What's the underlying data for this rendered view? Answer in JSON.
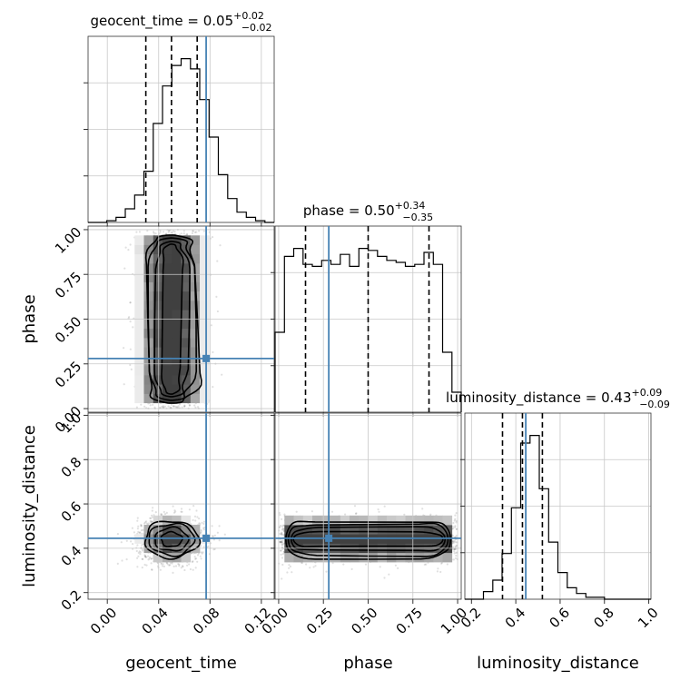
{
  "chart_data": {
    "type": "corner",
    "parameters": [
      "geocent_time",
      "phase",
      "luminosity_distance"
    ],
    "titles": [
      {
        "param": "geocent_time",
        "text": "geocent_time = 0.05",
        "sup": "+0.02",
        "sub": "−0.02"
      },
      {
        "param": "phase",
        "text": "phase = 0.50",
        "sup": "+0.34",
        "sub": "−0.35"
      },
      {
        "param": "luminosity_distance",
        "text": "luminosity_distance = 0.43",
        "sup": "+0.09",
        "sub": "−0.09"
      }
    ],
    "axis_labels": [
      "geocent_time",
      "phase",
      "luminosity_distance"
    ],
    "ranges": {
      "geocent_time": [
        -0.015,
        0.13
      ],
      "phase": [
        -0.02,
        1.02
      ],
      "luminosity_distance": [
        0.17,
        1.01
      ]
    },
    "ticks": {
      "geocent_time": [
        "0.00",
        "0.04",
        "0.08",
        "0.12"
      ],
      "phase": [
        "0.00",
        "0.25",
        "0.50",
        "0.75",
        "1.00"
      ],
      "luminosity_distance": [
        "0.2",
        "0.4",
        "0.6",
        "0.8",
        "1.0"
      ]
    },
    "truths": {
      "geocent_time": 0.077,
      "phase": 0.28,
      "luminosity_distance": 0.445
    },
    "truth_color": "#4682b4",
    "quantiles": {
      "geocent_time": [
        0.03,
        0.05,
        0.07
      ],
      "phase": [
        0.15,
        0.5,
        0.84
      ],
      "luminosity_distance": [
        0.34,
        0.43,
        0.52
      ]
    },
    "histograms": {
      "geocent_time": {
        "range": [
          -0.015,
          0.13
        ],
        "counts": [
          0,
          0,
          1,
          3,
          8,
          16,
          30,
          58,
          80,
          92,
          96,
          90,
          72,
          50,
          28,
          14,
          6,
          3,
          1,
          0
        ]
      },
      "phase": {
        "range": [
          -0.02,
          1.02
        ],
        "counts": [
          40,
          78,
          82,
          74,
          73,
          76,
          74,
          79,
          73,
          82,
          81,
          78,
          76,
          75,
          73,
          74,
          80,
          74,
          30,
          10
        ]
      },
      "luminosity_distance": {
        "range": [
          0.17,
          1.01
        ],
        "counts": [
          0,
          0,
          4,
          10,
          24,
          48,
          82,
          86,
          58,
          30,
          14,
          6,
          3,
          1,
          1,
          0,
          0,
          0,
          0,
          0
        ]
      }
    },
    "grid": true
  }
}
